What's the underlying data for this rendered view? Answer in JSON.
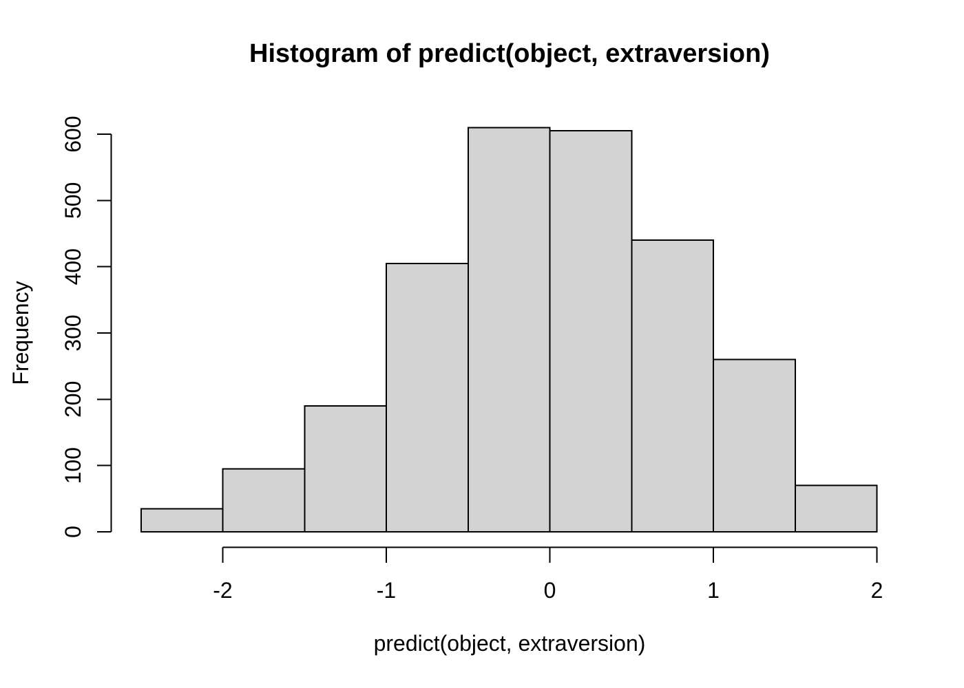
{
  "chart_data": {
    "type": "bar",
    "variant": "histogram",
    "title": "Histogram of predict(object, extraversion)",
    "xlabel": "predict(object, extraversion)",
    "ylabel": "Frequency",
    "bin_edges": [
      -2.5,
      -2.0,
      -1.5,
      -1.0,
      -0.5,
      0.0,
      0.5,
      1.0,
      1.5,
      2.0
    ],
    "counts": [
      35,
      95,
      190,
      405,
      610,
      605,
      440,
      260,
      70
    ],
    "x_ticks": [
      -2,
      -1,
      0,
      1,
      2
    ],
    "x_tick_labels": [
      "-2",
      "-1",
      "0",
      "1",
      "2"
    ],
    "y_ticks": [
      0,
      100,
      200,
      300,
      400,
      500,
      600
    ],
    "y_tick_labels": [
      "0",
      "100",
      "200",
      "300",
      "400",
      "500",
      "600"
    ],
    "xlim": [
      -2.68,
      2.18
    ],
    "ylim": [
      0,
      600
    ],
    "grid": "off",
    "legend": "none",
    "bar_fill": "#d3d3d3",
    "bar_stroke": "#000000",
    "axis_color": "#000000",
    "background": "#ffffff"
  }
}
